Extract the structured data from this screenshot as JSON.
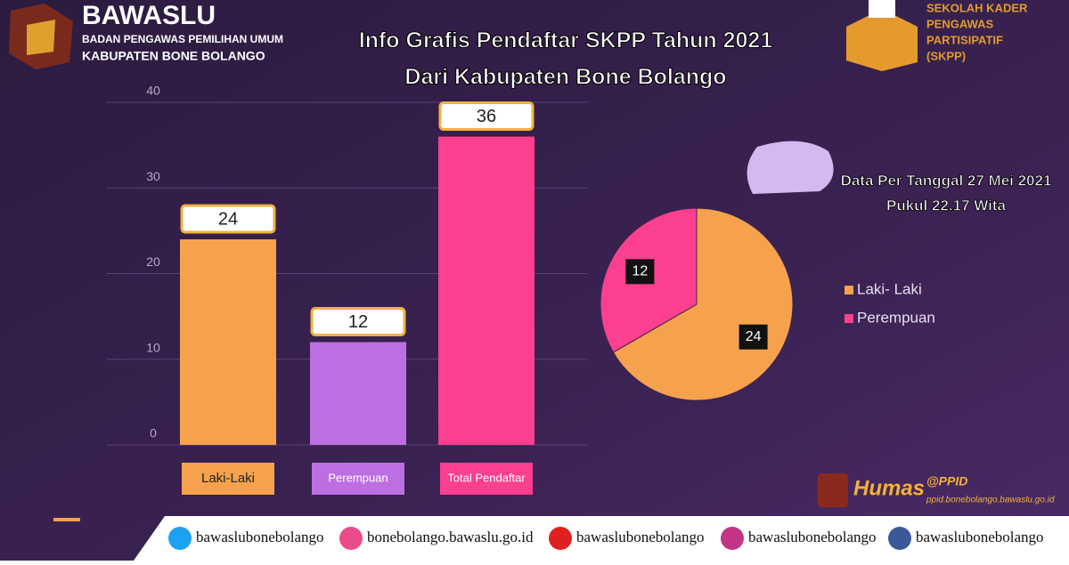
{
  "header": {
    "logo": "BAWASLU",
    "org": "BADAN PENGAWAS PEMILIHAN UMUM",
    "region": "KABUPATEN BONE BOLANGO",
    "skpp": [
      "SEKOLAH KADER",
      "PENGAWAS",
      "PARTISIPATIF",
      "(SKPP)"
    ]
  },
  "title": [
    "Info Grafis Pendaftar SKPP Tahun 2021",
    "Dari Kabupaten Bone Bolango"
  ],
  "note": [
    "Data Per Tanggal 27 Mei 2021",
    "Pukul 22.17 Wita"
  ],
  "chart_data": [
    {
      "type": "bar",
      "categories": [
        "Laki-Laki",
        "Perempuan",
        "Total Pendaftar"
      ],
      "values": [
        24,
        12,
        36
      ],
      "colors": [
        "#f6a24c",
        "#bd6fe2",
        "#fc3f8e"
      ],
      "ylim": [
        0,
        40
      ],
      "yticks": [
        0,
        10,
        20,
        30,
        40
      ],
      "grid": true
    },
    {
      "type": "pie",
      "categories": [
        "Laki- Laki",
        "Perempuan"
      ],
      "values": [
        24,
        12
      ],
      "colors": [
        "#f6a24c",
        "#fc3f8e"
      ],
      "legend": "right"
    }
  ],
  "humas": {
    "name": "Humas",
    "handle": "@PPID",
    "site": "ppid.bonebolango.bawaslu.go.id"
  },
  "footer": [
    "bawaslubonebolango",
    "bonebolango.bawaslu.go.id",
    "bawaslubonebolango",
    "bawaslubonebolango",
    "bawaslubonebolango"
  ]
}
